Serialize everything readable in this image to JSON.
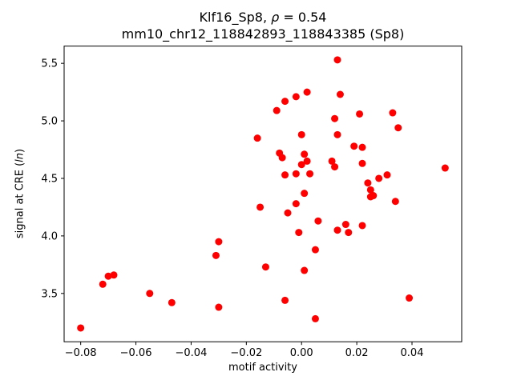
{
  "figure": {
    "title_line1_prefix": "Klf16_Sp8, ",
    "title_rho": "ρ",
    "title_line1_suffix": " = 0.54",
    "title_line2": "mm10_chr12_118842893_118843385 (Sp8)",
    "xlabel": "motif activity",
    "ylabel_prefix": "signal at CRE (",
    "ylabel_italic": "ln",
    "ylabel_suffix": ")"
  },
  "chart_data": {
    "type": "scatter",
    "title": "Klf16_Sp8, ρ = 0.54\nmm10_chr12_118842893_118843385 (Sp8)",
    "xlabel": "motif activity",
    "ylabel": "signal at CRE (ln)",
    "marker_color": "#ff0000",
    "axes_color": "#000000",
    "background_color": "#ffffff",
    "xlim": [
      -0.086,
      0.058
    ],
    "ylim": [
      3.08,
      5.65
    ],
    "x_ticks": [
      -0.08,
      -0.06,
      -0.04,
      -0.02,
      0.0,
      0.02,
      0.04
    ],
    "x_tick_labels": [
      "−0.08",
      "−0.06",
      "−0.04",
      "−0.02",
      "0.00",
      "0.02",
      "0.04"
    ],
    "y_ticks": [
      3.5,
      4.0,
      4.5,
      5.0,
      5.5
    ],
    "y_tick_labels": [
      "3.5",
      "4.0",
      "4.5",
      "5.0",
      "5.5"
    ],
    "grid": false,
    "legend": null,
    "points": [
      [
        -0.08,
        3.2
      ],
      [
        -0.072,
        3.58
      ],
      [
        -0.07,
        3.65
      ],
      [
        -0.068,
        3.66
      ],
      [
        -0.055,
        3.5
      ],
      [
        -0.047,
        3.42
      ],
      [
        -0.031,
        3.83
      ],
      [
        -0.03,
        3.95
      ],
      [
        -0.03,
        3.38
      ],
      [
        -0.016,
        4.85
      ],
      [
        -0.015,
        4.25
      ],
      [
        -0.013,
        3.73
      ],
      [
        -0.009,
        5.09
      ],
      [
        -0.008,
        4.72
      ],
      [
        -0.007,
        4.68
      ],
      [
        -0.006,
        5.17
      ],
      [
        -0.006,
        4.53
      ],
      [
        -0.006,
        3.44
      ],
      [
        -0.005,
        4.2
      ],
      [
        -0.002,
        5.21
      ],
      [
        -0.002,
        4.54
      ],
      [
        -0.002,
        4.28
      ],
      [
        -0.001,
        4.03
      ],
      [
        0.0,
        4.88
      ],
      [
        0.0,
        4.62
      ],
      [
        0.001,
        4.71
      ],
      [
        0.001,
        4.37
      ],
      [
        0.001,
        3.7
      ],
      [
        0.002,
        5.25
      ],
      [
        0.002,
        4.65
      ],
      [
        0.003,
        4.54
      ],
      [
        0.005,
        3.88
      ],
      [
        0.005,
        3.28
      ],
      [
        0.006,
        4.13
      ],
      [
        0.011,
        4.65
      ],
      [
        0.012,
        4.6
      ],
      [
        0.012,
        5.02
      ],
      [
        0.013,
        5.53
      ],
      [
        0.014,
        5.23
      ],
      [
        0.013,
        4.88
      ],
      [
        0.013,
        4.05
      ],
      [
        0.016,
        4.1
      ],
      [
        0.017,
        4.03
      ],
      [
        0.019,
        4.78
      ],
      [
        0.021,
        5.06
      ],
      [
        0.022,
        4.77
      ],
      [
        0.022,
        4.63
      ],
      [
        0.022,
        4.09
      ],
      [
        0.024,
        4.46
      ],
      [
        0.025,
        4.4
      ],
      [
        0.025,
        4.34
      ],
      [
        0.026,
        4.35
      ],
      [
        0.028,
        4.5
      ],
      [
        0.031,
        4.53
      ],
      [
        0.033,
        5.07
      ],
      [
        0.035,
        4.94
      ],
      [
        0.034,
        4.3
      ],
      [
        0.039,
        3.46
      ],
      [
        0.052,
        4.59
      ]
    ]
  }
}
